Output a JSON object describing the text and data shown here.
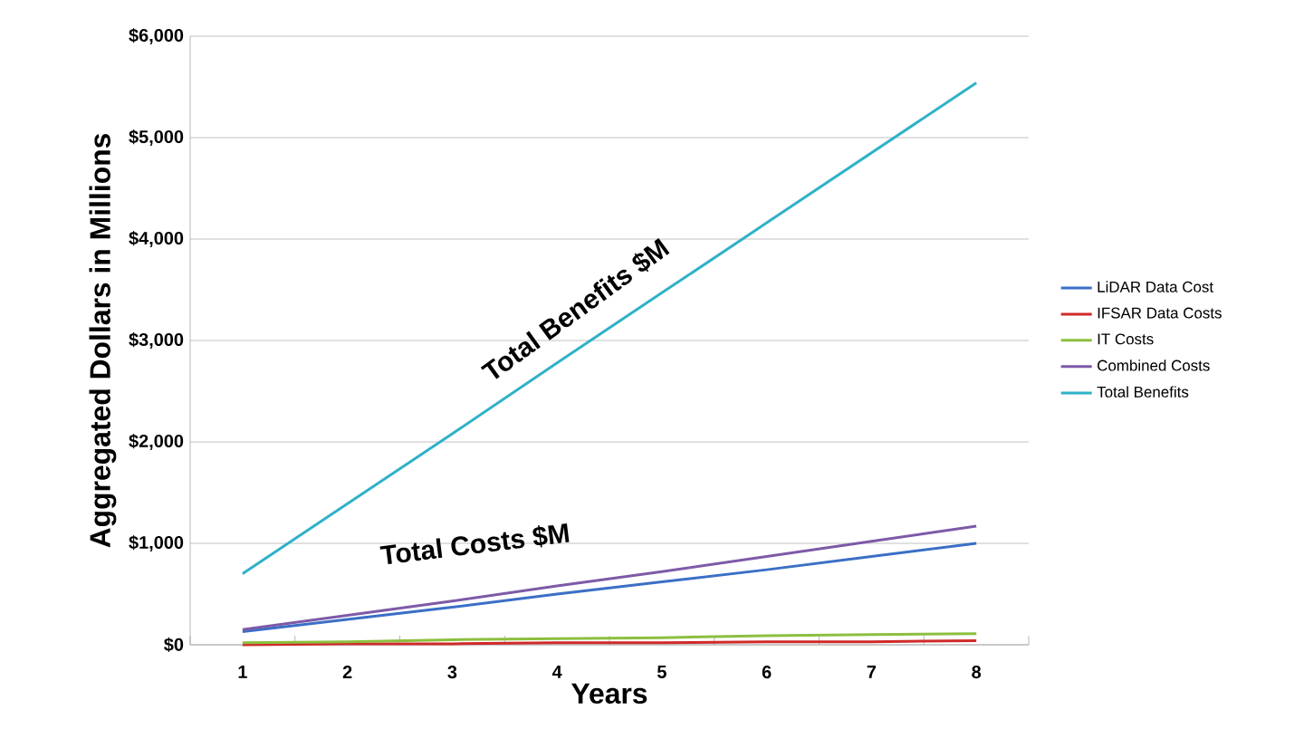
{
  "chart_data": {
    "type": "line",
    "xlabel": "Years",
    "ylabel": "Aggregated Dollars in Millions",
    "categories": [
      "1",
      "2",
      "3",
      "4",
      "5",
      "6",
      "7",
      "8"
    ],
    "series": [
      {
        "name": "LiDAR Data Cost",
        "color": "#3b6fc6",
        "values": [
          130,
          250,
          370,
          500,
          620,
          740,
          870,
          1000
        ]
      },
      {
        "name": "IFSAR Data Costs",
        "color": "#d02a2a",
        "values": [
          0,
          10,
          10,
          20,
          20,
          30,
          30,
          40
        ]
      },
      {
        "name": "IT Costs",
        "color": "#8cbf3f",
        "values": [
          20,
          30,
          50,
          60,
          70,
          90,
          100,
          110
        ]
      },
      {
        "name": "Combined Costs",
        "color": "#7d5aa8",
        "values": [
          150,
          290,
          430,
          580,
          720,
          870,
          1020,
          1170
        ]
      },
      {
        "name": "Total Benefits",
        "color": "#2fb1c9",
        "values": [
          700,
          1390,
          2080,
          2780,
          3470,
          4160,
          4850,
          5540
        ]
      }
    ],
    "ylim": [
      0,
      6000
    ],
    "yticks": [
      {
        "value": 0,
        "label": "$0"
      },
      {
        "value": 1000,
        "label": "$1,000"
      },
      {
        "value": 2000,
        "label": "$2,000"
      },
      {
        "value": 3000,
        "label": "$3,000"
      },
      {
        "value": 4000,
        "label": "$4,000"
      },
      {
        "value": 5000,
        "label": "$5,000"
      },
      {
        "value": 6000,
        "label": "$6,000"
      }
    ],
    "grid": "y",
    "legend": "right",
    "marker": "none",
    "line_style": "solid",
    "annotations": [
      "Total Benefits $M",
      "Total Costs $M"
    ]
  }
}
